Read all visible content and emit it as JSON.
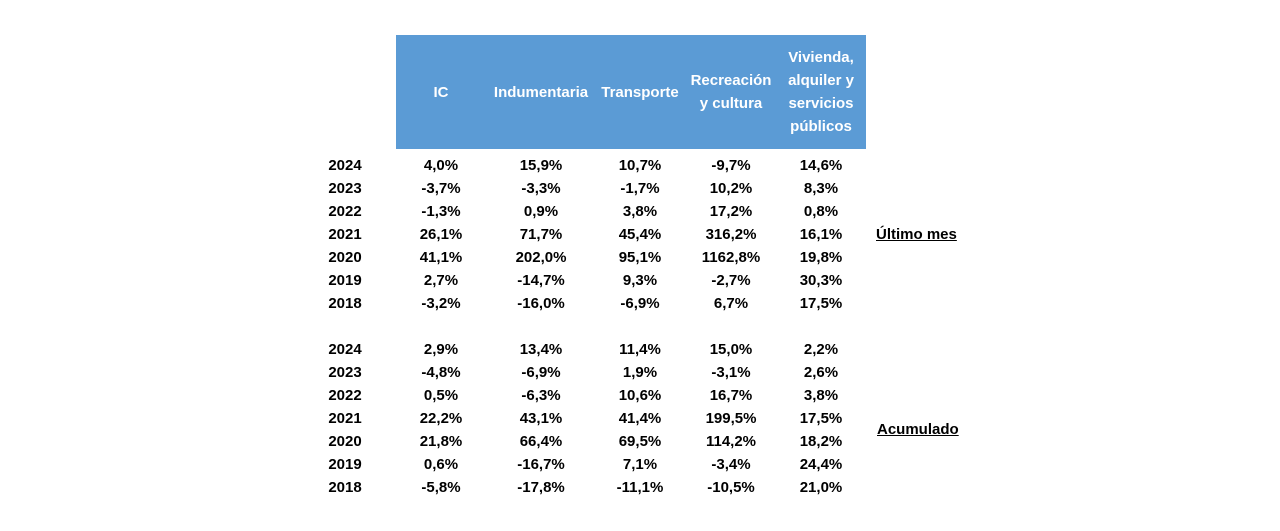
{
  "chart_data": {
    "type": "table",
    "columns": [
      "IC",
      "Indumentaria",
      "Transporte",
      "Recreación y cultura",
      "Vivienda, alquiler y servicios públicos"
    ],
    "column_header_lines": [
      [
        "IC"
      ],
      [
        "Indumentaria"
      ],
      [
        "Transporte"
      ],
      [
        "Recreación",
        "y cultura"
      ],
      [
        "Vivienda,",
        "alquiler y",
        "servicios",
        "públicos"
      ]
    ],
    "header_color": "#5b9bd5",
    "sections": [
      {
        "label": "Último mes",
        "rows": [
          {
            "year": "2024",
            "values": [
              "4,0%",
              "15,9%",
              "10,7%",
              "-9,7%",
              "14,6%"
            ]
          },
          {
            "year": "2023",
            "values": [
              "-3,7%",
              "-3,3%",
              "-1,7%",
              "10,2%",
              "8,3%"
            ]
          },
          {
            "year": "2022",
            "values": [
              "-1,3%",
              "0,9%",
              "3,8%",
              "17,2%",
              "0,8%"
            ]
          },
          {
            "year": "2021",
            "values": [
              "26,1%",
              "71,7%",
              "45,4%",
              "316,2%",
              "16,1%"
            ]
          },
          {
            "year": "2020",
            "values": [
              "41,1%",
              "202,0%",
              "95,1%",
              "1162,8%",
              "19,8%"
            ]
          },
          {
            "year": "2019",
            "values": [
              "2,7%",
              "-14,7%",
              "9,3%",
              "-2,7%",
              "30,3%"
            ]
          },
          {
            "year": "2018",
            "values": [
              "-3,2%",
              "-16,0%",
              "-6,9%",
              "6,7%",
              "17,5%"
            ]
          }
        ]
      },
      {
        "label": "Acumulado",
        "rows": [
          {
            "year": "2024",
            "values": [
              "2,9%",
              "13,4%",
              "11,4%",
              "15,0%",
              "2,2%"
            ]
          },
          {
            "year": "2023",
            "values": [
              "-4,8%",
              "-6,9%",
              "1,9%",
              "-3,1%",
              "2,6%"
            ]
          },
          {
            "year": "2022",
            "values": [
              "0,5%",
              "-6,3%",
              "10,6%",
              "16,7%",
              "3,8%"
            ]
          },
          {
            "year": "2021",
            "values": [
              "22,2%",
              "43,1%",
              "41,4%",
              "199,5%",
              "17,5%"
            ]
          },
          {
            "year": "2020",
            "values": [
              "21,8%",
              "66,4%",
              "69,5%",
              "114,2%",
              "18,2%"
            ]
          },
          {
            "year": "2019",
            "values": [
              "0,6%",
              "-16,7%",
              "7,1%",
              "-3,4%",
              "24,4%"
            ]
          },
          {
            "year": "2018",
            "values": [
              "-5,8%",
              "-17,8%",
              "-11,1%",
              "-10,5%",
              "21,0%"
            ]
          }
        ]
      }
    ]
  }
}
